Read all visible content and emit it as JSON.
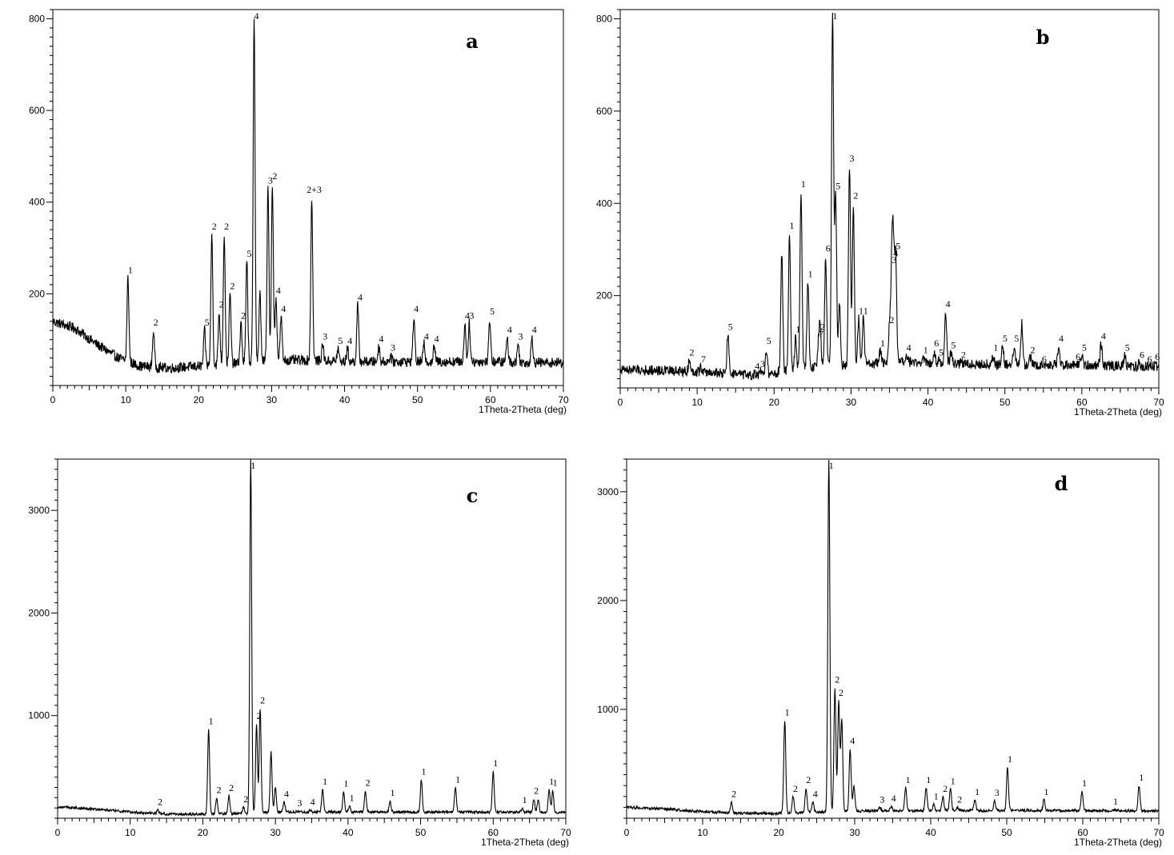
{
  "chart_data": [
    {
      "type": "line",
      "panel": "a",
      "xlabel": "1Theta-2Theta (deg)",
      "ylabel": "",
      "xlim": [
        0,
        70
      ],
      "ylim": [
        0,
        820
      ],
      "xticks": [
        "0",
        "10",
        "20",
        "30",
        "40",
        "50",
        "60",
        "70"
      ],
      "yticks": [
        200,
        400,
        600,
        800
      ],
      "grid": false,
      "baseline": [
        [
          0,
          140
        ],
        [
          3,
          125
        ],
        [
          6,
          90
        ],
        [
          9,
          60
        ],
        [
          12,
          42
        ],
        [
          16,
          38
        ],
        [
          20,
          42
        ],
        [
          25,
          48
        ],
        [
          30,
          55
        ],
        [
          35,
          55
        ],
        [
          40,
          52
        ],
        [
          45,
          52
        ],
        [
          50,
          52
        ],
        [
          55,
          52
        ],
        [
          60,
          52
        ],
        [
          65,
          50
        ],
        [
          70,
          50
        ]
      ],
      "peaks": [
        {
          "x": 10.3,
          "y": 235,
          "label": "1"
        },
        {
          "x": 13.8,
          "y": 120,
          "label": "2"
        },
        {
          "x": 20.8,
          "y": 120,
          "label": "5"
        },
        {
          "x": 21.8,
          "y": 330,
          "label": "2"
        },
        {
          "x": 22.8,
          "y": 160,
          "label": "2"
        },
        {
          "x": 23.5,
          "y": 330,
          "label": "2"
        },
        {
          "x": 24.3,
          "y": 200,
          "label": "2"
        },
        {
          "x": 25.8,
          "y": 135,
          "label": "2"
        },
        {
          "x": 26.6,
          "y": 270,
          "label": "5"
        },
        {
          "x": 27.6,
          "y": 800,
          "label": "4"
        },
        {
          "x": 28.4,
          "y": 200,
          "label": ""
        },
        {
          "x": 29.5,
          "y": 430,
          "label": "3"
        },
        {
          "x": 30.1,
          "y": 440,
          "label": "2"
        },
        {
          "x": 30.6,
          "y": 190,
          "label": "4"
        },
        {
          "x": 31.3,
          "y": 150,
          "label": "4"
        },
        {
          "x": 35.5,
          "y": 410,
          "label": "2+3"
        },
        {
          "x": 37.0,
          "y": 90,
          "label": "3"
        },
        {
          "x": 39.1,
          "y": 80,
          "label": "5"
        },
        {
          "x": 40.4,
          "y": 80,
          "label": "4"
        },
        {
          "x": 41.8,
          "y": 175,
          "label": "4"
        },
        {
          "x": 44.7,
          "y": 85,
          "label": "4"
        },
        {
          "x": 46.3,
          "y": 65,
          "label": "3"
        },
        {
          "x": 49.5,
          "y": 150,
          "label": "4"
        },
        {
          "x": 50.9,
          "y": 90,
          "label": "4"
        },
        {
          "x": 52.3,
          "y": 85,
          "label": "4"
        },
        {
          "x": 56.5,
          "y": 135,
          "label": "4"
        },
        {
          "x": 57.1,
          "y": 135,
          "label": "3"
        },
        {
          "x": 59.9,
          "y": 145,
          "label": "5"
        },
        {
          "x": 62.3,
          "y": 105,
          "label": "4"
        },
        {
          "x": 63.8,
          "y": 90,
          "label": "3"
        },
        {
          "x": 65.7,
          "y": 105,
          "label": "4"
        }
      ]
    },
    {
      "type": "line",
      "panel": "b",
      "xlabel": "1Theta-2Theta (deg)",
      "ylabel": "",
      "xlim": [
        0,
        70
      ],
      "ylim": [
        0,
        820
      ],
      "xticks": [
        "0",
        "10",
        "20",
        "30",
        "40",
        "50",
        "60",
        "70"
      ],
      "yticks": [
        200,
        400,
        600,
        800
      ],
      "grid": false,
      "baseline": [
        [
          0,
          40
        ],
        [
          5,
          38
        ],
        [
          10,
          35
        ],
        [
          15,
          30
        ],
        [
          18,
          25
        ],
        [
          21,
          35
        ],
        [
          25,
          45
        ],
        [
          30,
          50
        ],
        [
          35,
          55
        ],
        [
          40,
          55
        ],
        [
          45,
          52
        ],
        [
          50,
          50
        ],
        [
          55,
          50
        ],
        [
          60,
          50
        ],
        [
          65,
          48
        ],
        [
          70,
          45
        ]
      ],
      "peaks": [
        {
          "x": 9.0,
          "y": 60,
          "label": "2"
        },
        {
          "x": 10.5,
          "y": 45,
          "label": "7"
        },
        {
          "x": 14.0,
          "y": 115,
          "label": "5"
        },
        {
          "x": 17.5,
          "y": 30,
          "label": "4"
        },
        {
          "x": 18.2,
          "y": 35,
          "label": "3"
        },
        {
          "x": 19.0,
          "y": 85,
          "label": "5"
        },
        {
          "x": 21.0,
          "y": 290,
          "label": ""
        },
        {
          "x": 22.0,
          "y": 335,
          "label": "1"
        },
        {
          "x": 22.8,
          "y": 110,
          "label": "1"
        },
        {
          "x": 23.5,
          "y": 425,
          "label": "1"
        },
        {
          "x": 24.4,
          "y": 230,
          "label": "1"
        },
        {
          "x": 25.8,
          "y": 100,
          "label": "7"
        },
        {
          "x": 26.0,
          "y": 115,
          "label": "2"
        },
        {
          "x": 26.7,
          "y": 285,
          "label": "6"
        },
        {
          "x": 27.6,
          "y": 820,
          "label": "1"
        },
        {
          "x": 28.0,
          "y": 420,
          "label": "5"
        },
        {
          "x": 28.5,
          "y": 185,
          "label": ""
        },
        {
          "x": 29.8,
          "y": 480,
          "label": "3"
        },
        {
          "x": 30.3,
          "y": 400,
          "label": "2"
        },
        {
          "x": 31.0,
          "y": 150,
          "label": "1"
        },
        {
          "x": 31.6,
          "y": 150,
          "label": "1"
        },
        {
          "x": 33.8,
          "y": 80,
          "label": "1"
        },
        {
          "x": 35.0,
          "y": 130,
          "label": "2"
        },
        {
          "x": 35.5,
          "y": 275,
          "label": "4"
        },
        {
          "x": 35.8,
          "y": 290,
          "label": "5"
        },
        {
          "x": 35.3,
          "y": 260,
          "label": "3"
        },
        {
          "x": 37.2,
          "y": 70,
          "label": "4"
        },
        {
          "x": 39.4,
          "y": 65,
          "label": "1"
        },
        {
          "x": 40.8,
          "y": 80,
          "label": "6"
        },
        {
          "x": 41.4,
          "y": 60,
          "label": "5"
        },
        {
          "x": 42.3,
          "y": 165,
          "label": "4"
        },
        {
          "x": 43.0,
          "y": 75,
          "label": "5"
        },
        {
          "x": 44.3,
          "y": 55,
          "label": "2"
        },
        {
          "x": 48.5,
          "y": 70,
          "label": "1"
        },
        {
          "x": 49.7,
          "y": 90,
          "label": "5"
        },
        {
          "x": 51.2,
          "y": 90,
          "label": "5"
        },
        {
          "x": 52.2,
          "y": 140,
          "label": ""
        },
        {
          "x": 53.3,
          "y": 65,
          "label": "2"
        },
        {
          "x": 54.8,
          "y": 45,
          "label": "6"
        },
        {
          "x": 57.0,
          "y": 90,
          "label": "4"
        },
        {
          "x": 59.2,
          "y": 50,
          "label": "6"
        },
        {
          "x": 60.0,
          "y": 70,
          "label": "5"
        },
        {
          "x": 62.5,
          "y": 95,
          "label": "4"
        },
        {
          "x": 65.6,
          "y": 70,
          "label": "5"
        },
        {
          "x": 67.5,
          "y": 55,
          "label": "6"
        },
        {
          "x": 68.5,
          "y": 45,
          "label": "6"
        },
        {
          "x": 69.5,
          "y": 50,
          "label": "6"
        }
      ]
    },
    {
      "type": "line",
      "panel": "c",
      "xlabel": "1Theta-2Theta (deg)",
      "ylabel": "",
      "xlim": [
        0,
        70
      ],
      "ylim": [
        0,
        3500
      ],
      "xticks": [
        "0",
        "10",
        "20",
        "30",
        "40",
        "50",
        "60",
        "70"
      ],
      "yticks": [
        1000,
        2000,
        3000
      ],
      "grid": false,
      "baseline": [
        [
          0,
          110
        ],
        [
          5,
          90
        ],
        [
          10,
          60
        ],
        [
          15,
          40
        ],
        [
          20,
          40
        ],
        [
          25,
          45
        ],
        [
          30,
          60
        ],
        [
          35,
          60
        ],
        [
          40,
          60
        ],
        [
          45,
          60
        ],
        [
          50,
          60
        ],
        [
          55,
          60
        ],
        [
          60,
          60
        ],
        [
          65,
          60
        ],
        [
          70,
          55
        ]
      ],
      "peaks": [
        {
          "x": 13.8,
          "y": 80,
          "label": "2"
        },
        {
          "x": 20.8,
          "y": 870,
          "label": "1"
        },
        {
          "x": 21.9,
          "y": 200,
          "label": "2"
        },
        {
          "x": 23.6,
          "y": 220,
          "label": "2"
        },
        {
          "x": 25.6,
          "y": 110,
          "label": "2"
        },
        {
          "x": 26.6,
          "y": 3500,
          "label": "1"
        },
        {
          "x": 27.4,
          "y": 920,
          "label": "2"
        },
        {
          "x": 27.9,
          "y": 1070,
          "label": "2"
        },
        {
          "x": 29.4,
          "y": 650,
          "label": ""
        },
        {
          "x": 30.0,
          "y": 300,
          "label": ""
        },
        {
          "x": 31.2,
          "y": 160,
          "label": "4"
        },
        {
          "x": 33.0,
          "y": 70,
          "label": "3"
        },
        {
          "x": 34.8,
          "y": 80,
          "label": "4"
        },
        {
          "x": 36.5,
          "y": 280,
          "label": "1"
        },
        {
          "x": 39.4,
          "y": 260,
          "label": "1"
        },
        {
          "x": 40.2,
          "y": 120,
          "label": "1"
        },
        {
          "x": 42.4,
          "y": 270,
          "label": "2"
        },
        {
          "x": 45.8,
          "y": 170,
          "label": "1"
        },
        {
          "x": 50.1,
          "y": 380,
          "label": "1"
        },
        {
          "x": 54.8,
          "y": 300,
          "label": "1"
        },
        {
          "x": 60.0,
          "y": 460,
          "label": "1"
        },
        {
          "x": 64.0,
          "y": 100,
          "label": "1"
        },
        {
          "x": 65.6,
          "y": 190,
          "label": "2"
        },
        {
          "x": 66.2,
          "y": 180,
          "label": ""
        },
        {
          "x": 67.7,
          "y": 280,
          "label": "1"
        },
        {
          "x": 68.2,
          "y": 270,
          "label": "1"
        }
      ]
    },
    {
      "type": "line",
      "panel": "d",
      "xlabel": "1Theta-2Theta (deg)",
      "ylabel": "",
      "xlim": [
        0,
        70
      ],
      "ylim": [
        0,
        3300
      ],
      "xticks": [
        "0",
        "10",
        "20",
        "30",
        "40",
        "50",
        "60",
        "70"
      ],
      "yticks": [
        1000,
        2000,
        3000
      ],
      "grid": false,
      "baseline": [
        [
          0,
          100
        ],
        [
          5,
          85
        ],
        [
          10,
          60
        ],
        [
          15,
          45
        ],
        [
          20,
          45
        ],
        [
          25,
          55
        ],
        [
          30,
          65
        ],
        [
          35,
          70
        ],
        [
          40,
          70
        ],
        [
          45,
          70
        ],
        [
          50,
          70
        ],
        [
          55,
          70
        ],
        [
          60,
          70
        ],
        [
          65,
          70
        ],
        [
          70,
          65
        ]
      ],
      "peaks": [
        {
          "x": 13.8,
          "y": 150,
          "label": "2"
        },
        {
          "x": 20.8,
          "y": 900,
          "label": "1"
        },
        {
          "x": 21.9,
          "y": 200,
          "label": "2"
        },
        {
          "x": 23.6,
          "y": 280,
          "label": "2"
        },
        {
          "x": 24.5,
          "y": 150,
          "label": "4"
        },
        {
          "x": 26.6,
          "y": 3300,
          "label": "1"
        },
        {
          "x": 27.4,
          "y": 1200,
          "label": "2"
        },
        {
          "x": 27.9,
          "y": 1080,
          "label": "2"
        },
        {
          "x": 28.3,
          "y": 900,
          "label": ""
        },
        {
          "x": 29.4,
          "y": 640,
          "label": "4"
        },
        {
          "x": 29.9,
          "y": 300,
          "label": ""
        },
        {
          "x": 33.3,
          "y": 100,
          "label": "3"
        },
        {
          "x": 34.8,
          "y": 110,
          "label": "4"
        },
        {
          "x": 36.7,
          "y": 280,
          "label": "1"
        },
        {
          "x": 39.4,
          "y": 280,
          "label": "1"
        },
        {
          "x": 40.4,
          "y": 130,
          "label": "1"
        },
        {
          "x": 41.6,
          "y": 200,
          "label": "2"
        },
        {
          "x": 42.6,
          "y": 270,
          "label": "1"
        },
        {
          "x": 43.5,
          "y": 100,
          "label": "2"
        },
        {
          "x": 45.8,
          "y": 170,
          "label": "1"
        },
        {
          "x": 48.4,
          "y": 160,
          "label": "3"
        },
        {
          "x": 50.1,
          "y": 470,
          "label": "1"
        },
        {
          "x": 54.9,
          "y": 170,
          "label": "1"
        },
        {
          "x": 59.9,
          "y": 250,
          "label": "1"
        },
        {
          "x": 64.0,
          "y": 80,
          "label": "1"
        },
        {
          "x": 67.4,
          "y": 300,
          "label": "1"
        }
      ]
    }
  ]
}
